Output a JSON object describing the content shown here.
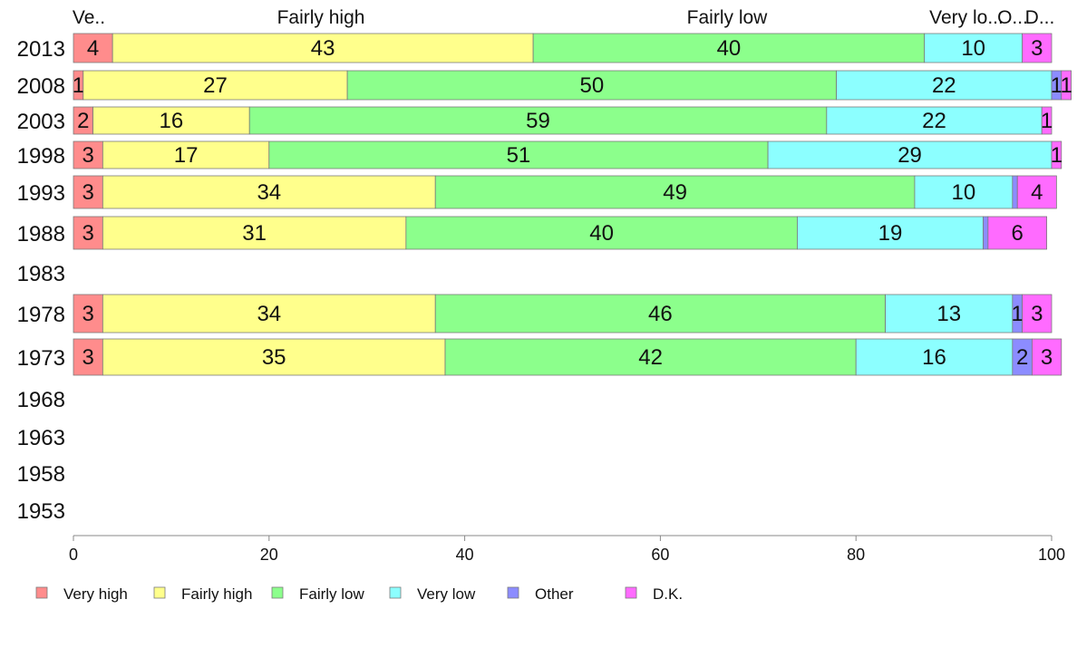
{
  "chart_data": {
    "type": "bar",
    "orientation": "horizontal",
    "stacked": true,
    "xlim": [
      0,
      100
    ],
    "x_ticks": [
      "0",
      "20",
      "40",
      "60",
      "80",
      "100"
    ],
    "categories": [
      "2013",
      "2008",
      "2003",
      "1998",
      "1993",
      "1988",
      "1983",
      "1978",
      "1973",
      "1968",
      "1963",
      "1958",
      "1953"
    ],
    "column_headers": [
      "Ve..",
      "Fairly high",
      "Fairly low",
      "Very lo...",
      "O...",
      "D..."
    ],
    "series": [
      {
        "name": "Very high",
        "color": "#ff8c8c",
        "values": [
          4,
          1,
          2,
          3,
          3,
          3,
          null,
          3,
          3,
          null,
          null,
          null,
          null
        ]
      },
      {
        "name": "Fairly high",
        "color": "#ffff8c",
        "values": [
          43,
          27,
          16,
          17,
          34,
          31,
          null,
          34,
          35,
          null,
          null,
          null,
          null
        ]
      },
      {
        "name": "Fairly low",
        "color": "#8cff8c",
        "values": [
          40,
          50,
          59,
          51,
          49,
          40,
          null,
          46,
          42,
          null,
          null,
          null,
          null
        ]
      },
      {
        "name": "Very low",
        "color": "#8cffff",
        "values": [
          10,
          22,
          22,
          29,
          10,
          19,
          null,
          13,
          16,
          null,
          null,
          null,
          null
        ]
      },
      {
        "name": "Other",
        "color": "#8c8cff",
        "values": [
          0,
          1,
          0,
          0,
          0.5,
          0.5,
          null,
          1,
          2,
          null,
          null,
          null,
          null
        ]
      },
      {
        "name": "D.K.",
        "color": "#ff6bff",
        "values": [
          3,
          1,
          1,
          1,
          4,
          6,
          null,
          3,
          3,
          null,
          null,
          null,
          null
        ]
      }
    ],
    "segment_labels": [
      [
        "4",
        "43",
        "40",
        "10",
        "",
        "3"
      ],
      [
        "1",
        "27",
        "50",
        "22",
        "1",
        "1"
      ],
      [
        "2",
        "16",
        "59",
        "22",
        "",
        "1"
      ],
      [
        "3",
        "17",
        "51",
        "29",
        "",
        "1"
      ],
      [
        "3",
        "34",
        "49",
        "10",
        "",
        "4"
      ],
      [
        "3",
        "31",
        "40",
        "19",
        "",
        "6"
      ],
      [],
      [
        "3",
        "34",
        "46",
        "13",
        "1",
        "3"
      ],
      [
        "3",
        "35",
        "42",
        "16",
        "2",
        "3"
      ],
      [],
      [],
      [],
      []
    ],
    "legend": [
      "Very high",
      "Fairly high",
      "Fairly low",
      "Very low",
      "Other",
      "D.K."
    ],
    "legend_position": "bottom-left",
    "grid": false
  }
}
